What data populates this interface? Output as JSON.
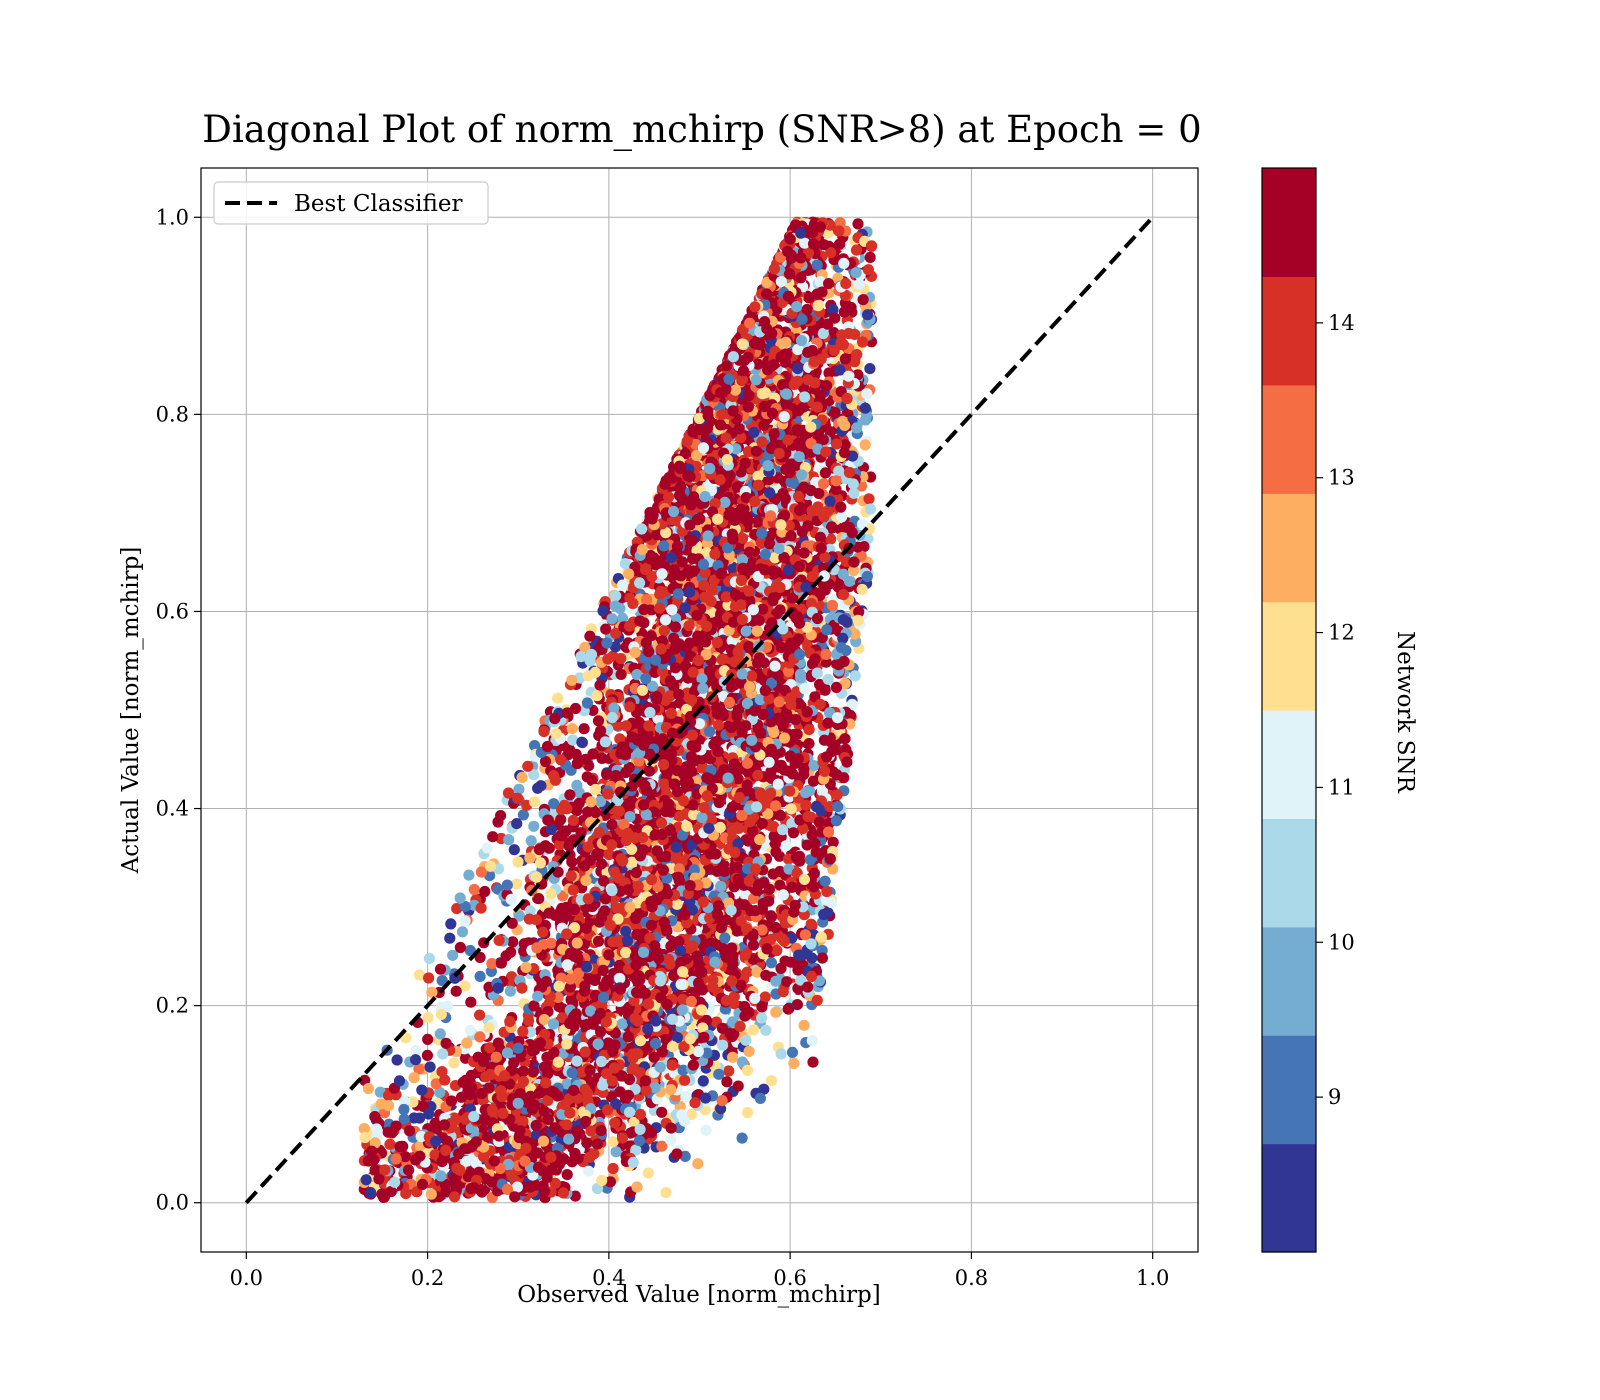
{
  "chart_data": {
    "type": "scatter",
    "title": "Diagonal Plot of norm_mchirp (SNR>8) at Epoch = 0",
    "xlabel": "Observed Value [norm_mchirp]",
    "ylabel": "Actual Value [norm_mchirp]",
    "xlim": [
      -0.05,
      1.05
    ],
    "ylim": [
      -0.05,
      1.05
    ],
    "xticks": [
      "0.0",
      "0.2",
      "0.4",
      "0.6",
      "0.8",
      "1.0"
    ],
    "yticks": [
      "0.0",
      "0.2",
      "0.4",
      "0.6",
      "0.8",
      "1.0"
    ],
    "grid": true,
    "legend": {
      "position": "top-left",
      "entries": [
        "Best Classifier"
      ]
    },
    "reference_line": {
      "name": "Best Classifier",
      "style": "dashed",
      "color": "#000000",
      "from": [
        0,
        0
      ],
      "to": [
        1,
        1
      ]
    },
    "colorbar": {
      "label": "Network SNR",
      "range": [
        8,
        15
      ],
      "ticks": [
        "9",
        "10",
        "11",
        "12",
        "13",
        "14"
      ],
      "colors": [
        "#313695",
        "#4575b4",
        "#74add1",
        "#abd9e9",
        "#e0f3f8",
        "#fee090",
        "#fdae61",
        "#f46d43",
        "#d73027",
        "#a50026"
      ]
    },
    "series": [
      {
        "point_count": 9000,
        "color_by": "Network SNR",
        "x_range": [
          0.12,
          0.69
        ],
        "y_range": [
          0.0,
          1.0
        ]
      }
    ]
  }
}
